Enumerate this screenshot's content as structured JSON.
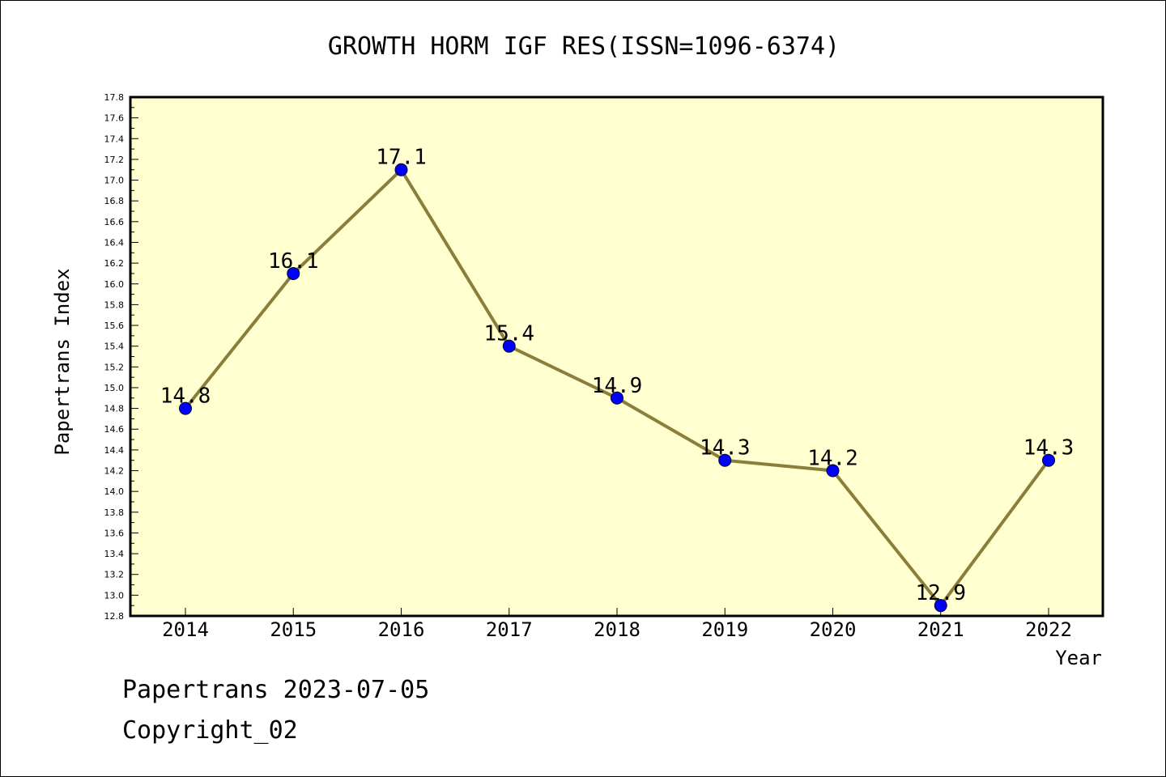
{
  "chart_data": {
    "type": "line",
    "title": "GROWTH HORM IGF RES(ISSN=1096-6374)",
    "xlabel": "Year",
    "ylabel": "Papertrans Index",
    "categories": [
      "2014",
      "2015",
      "2016",
      "2017",
      "2018",
      "2019",
      "2020",
      "2021",
      "2022"
    ],
    "series": [
      {
        "values": [
          14.8,
          16.1,
          17.1,
          15.4,
          14.9,
          14.3,
          14.2,
          12.9,
          14.3
        ],
        "labels": [
          "14.8",
          "16.1",
          "17.1",
          "15.4",
          "14.9",
          "14.3",
          "14.2",
          "12.9",
          "14.3"
        ]
      }
    ],
    "ylim": [
      12.8,
      17.8
    ],
    "yticks": [
      "12.8",
      "13.0",
      "13.2",
      "13.4",
      "13.6",
      "13.8",
      "14.0",
      "14.2",
      "14.4",
      "14.6",
      "14.8",
      "15.0",
      "15.2",
      "15.4",
      "15.6",
      "15.8",
      "16.0",
      "16.2",
      "16.4",
      "16.6",
      "16.8",
      "17.0",
      "17.2",
      "17.4",
      "17.6",
      "17.8"
    ],
    "grid": false,
    "colors": {
      "plot_background": "#ffffd0",
      "line": "#8b7d3a",
      "marker": "#0000ff"
    }
  },
  "footer": {
    "date": "Papertrans 2023-07-05",
    "copyright": "Copyright_02"
  }
}
